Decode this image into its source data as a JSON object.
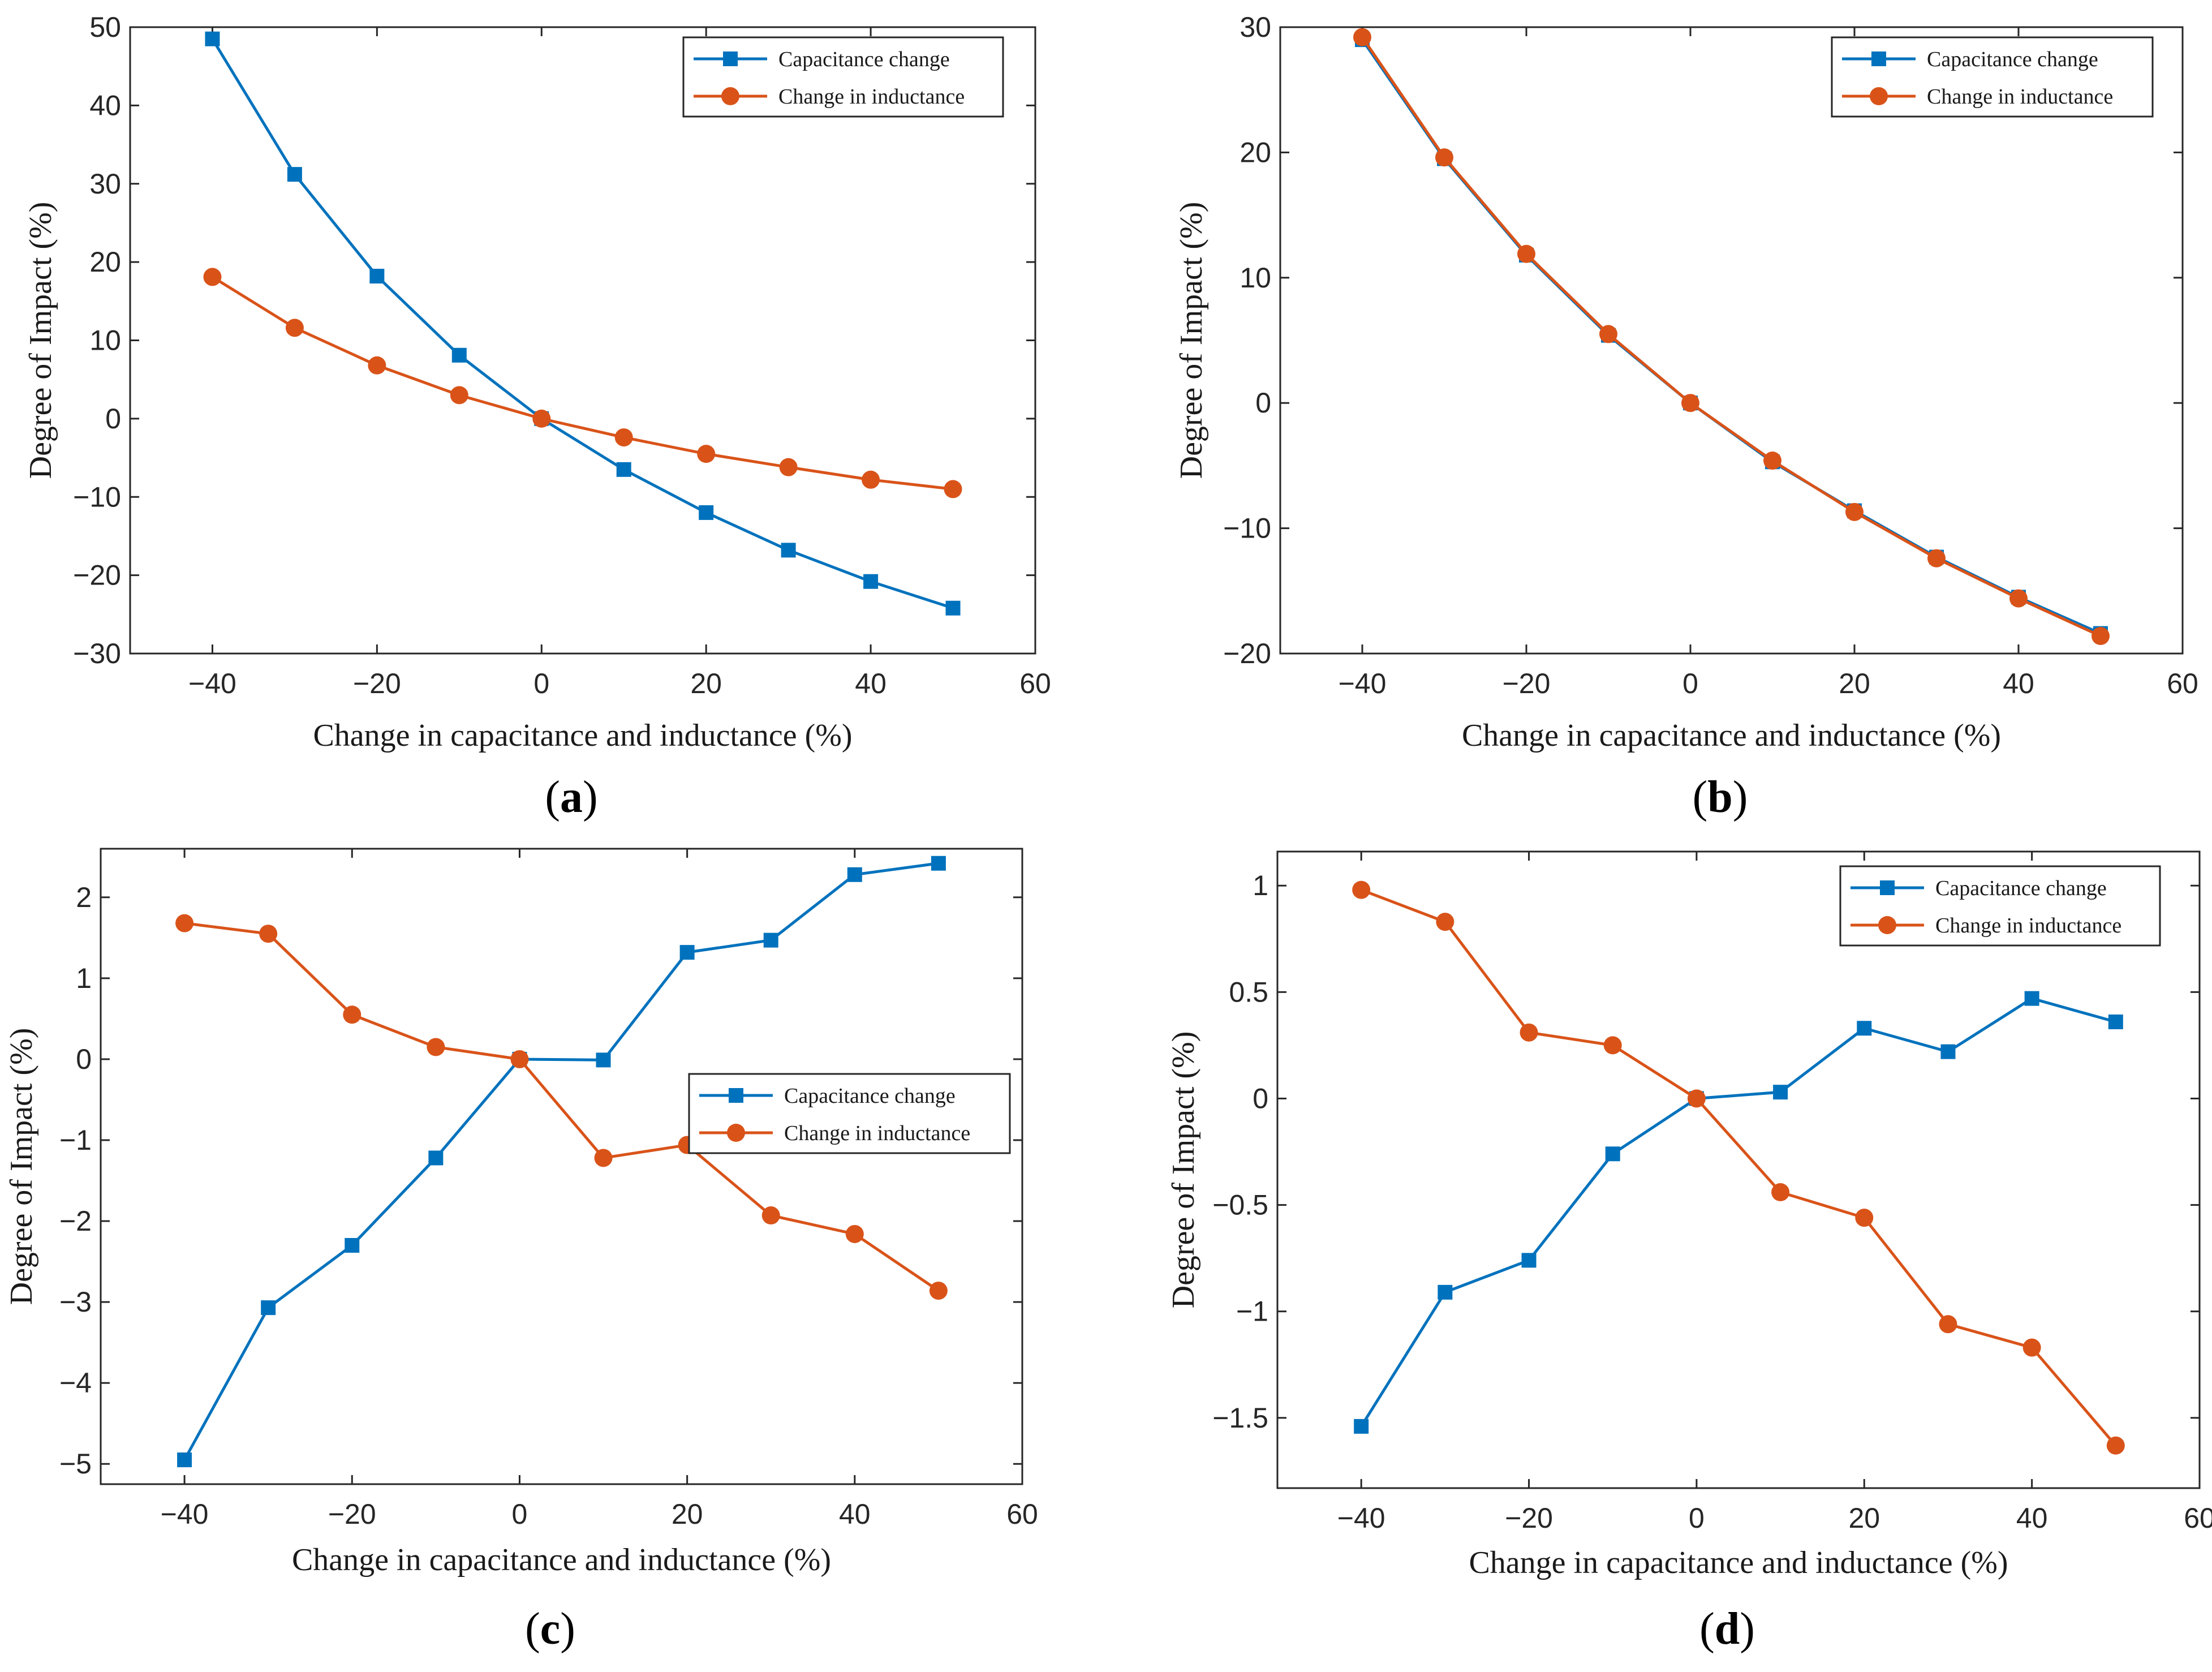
{
  "figure": {
    "series_colors": {
      "capacitance": "#0072BD",
      "inductance": "#D95319"
    }
  },
  "chart_data": [
    {
      "id": "a",
      "type": "line",
      "panel_label": "a",
      "xlabel": "Change in capacitance and inductance (%)",
      "ylabel": "Degree of Impact (%)",
      "xlim": [
        -50,
        60
      ],
      "ylim": [
        -30,
        50
      ],
      "xticks": [
        -40,
        -20,
        0,
        20,
        40,
        60
      ],
      "xtick_labels": [
        "−40",
        "−20",
        "0",
        "20",
        "40",
        "60"
      ],
      "yticks": [
        -30,
        -20,
        -10,
        0,
        10,
        20,
        30,
        40,
        50
      ],
      "ytick_labels": [
        "−30",
        "−20",
        "−10",
        "0",
        "10",
        "20",
        "30",
        "40",
        "50"
      ],
      "legend_position": "top-right",
      "x": [
        -40,
        -30,
        -20,
        -10,
        0,
        10,
        20,
        30,
        40,
        50
      ],
      "series": [
        {
          "name": "Capacitance change",
          "marker": "square",
          "color": "#0072BD",
          "values": [
            48.5,
            31.2,
            18.2,
            8.1,
            0,
            -6.5,
            -12.0,
            -16.8,
            -20.8,
            -24.2
          ]
        },
        {
          "name": "Change in inductance",
          "marker": "circle",
          "color": "#D95319",
          "values": [
            18.1,
            11.6,
            6.8,
            3.0,
            0,
            -2.4,
            -4.5,
            -6.2,
            -7.8,
            -9.0
          ]
        }
      ]
    },
    {
      "id": "b",
      "type": "line",
      "panel_label": "b",
      "xlabel": "Change in capacitance and inductance (%)",
      "ylabel": "Degree of Impact (%)",
      "xlim": [
        -50,
        60
      ],
      "ylim": [
        -20,
        30
      ],
      "xticks": [
        -40,
        -20,
        0,
        20,
        40,
        60
      ],
      "xtick_labels": [
        "−40",
        "−20",
        "0",
        "20",
        "40",
        "60"
      ],
      "yticks": [
        -20,
        -10,
        0,
        10,
        20,
        30
      ],
      "ytick_labels": [
        "−20",
        "−10",
        "0",
        "10",
        "20",
        "30"
      ],
      "legend_position": "top-right",
      "x": [
        -40,
        -30,
        -20,
        -10,
        0,
        10,
        20,
        30,
        40,
        50
      ],
      "series": [
        {
          "name": "Capacitance change",
          "marker": "square",
          "color": "#0072BD",
          "values": [
            29.0,
            19.5,
            11.8,
            5.4,
            0,
            -4.7,
            -8.6,
            -12.3,
            -15.5,
            -18.4
          ]
        },
        {
          "name": "Change in inductance",
          "marker": "circle",
          "color": "#D95319",
          "values": [
            29.2,
            19.6,
            11.9,
            5.5,
            0,
            -4.6,
            -8.7,
            -12.4,
            -15.6,
            -18.6
          ]
        }
      ]
    },
    {
      "id": "c",
      "type": "line",
      "panel_label": "c",
      "xlabel": "Change in capacitance and inductance (%)",
      "ylabel": "Degree of Impact (%)",
      "xlim": [
        -50,
        60
      ],
      "ylim": [
        -5.25,
        2.6
      ],
      "xticks": [
        -40,
        -20,
        0,
        20,
        40,
        60
      ],
      "xtick_labels": [
        "−40",
        "−20",
        "0",
        "20",
        "40",
        "60"
      ],
      "yticks": [
        -5,
        -4,
        -3,
        -2,
        -1,
        0,
        1,
        2
      ],
      "ytick_labels": [
        "−5",
        "−4",
        "−3",
        "−2",
        "−1",
        "0",
        "1",
        "2"
      ],
      "legend_position": "center-right",
      "x": [
        -40,
        -30,
        -20,
        -10,
        0,
        10,
        20,
        30,
        40,
        50
      ],
      "series": [
        {
          "name": "Capacitance change",
          "marker": "square",
          "color": "#0072BD",
          "values": [
            -4.95,
            -3.07,
            -2.3,
            -1.22,
            0,
            -0.01,
            1.32,
            1.47,
            2.28,
            2.42
          ]
        },
        {
          "name": "Change in inductance",
          "marker": "circle",
          "color": "#D95319",
          "values": [
            1.68,
            1.55,
            0.55,
            0.15,
            0,
            -1.22,
            -1.06,
            -1.93,
            -2.16,
            -2.86
          ]
        }
      ]
    },
    {
      "id": "d",
      "type": "line",
      "panel_label": "d",
      "xlabel": "Change in capacitance and inductance (%)",
      "ylabel": "Degree of Impact (%)",
      "xlim": [
        -50,
        60
      ],
      "ylim": [
        -1.83,
        1.16
      ],
      "xticks": [
        -40,
        -20,
        0,
        20,
        40,
        60
      ],
      "xtick_labels": [
        "−40",
        "−20",
        "0",
        "20",
        "40",
        "60"
      ],
      "yticks": [
        -1.5,
        -1,
        -0.5,
        0,
        0.5,
        1
      ],
      "ytick_labels": [
        "−1.5",
        "−1",
        "−0.5",
        "0",
        "0.5",
        "1"
      ],
      "legend_position": "top-right",
      "x": [
        -40,
        -30,
        -20,
        -10,
        0,
        10,
        20,
        30,
        40,
        50
      ],
      "series": [
        {
          "name": "Capacitance change",
          "marker": "square",
          "color": "#0072BD",
          "values": [
            -1.54,
            -0.91,
            -0.76,
            -0.26,
            0,
            0.03,
            0.33,
            0.22,
            0.47,
            0.36
          ]
        },
        {
          "name": "Change in inductance",
          "marker": "circle",
          "color": "#D95319",
          "values": [
            0.98,
            0.83,
            0.31,
            0.25,
            0,
            -0.44,
            -0.56,
            -1.06,
            -1.17,
            -1.63
          ]
        }
      ]
    }
  ]
}
